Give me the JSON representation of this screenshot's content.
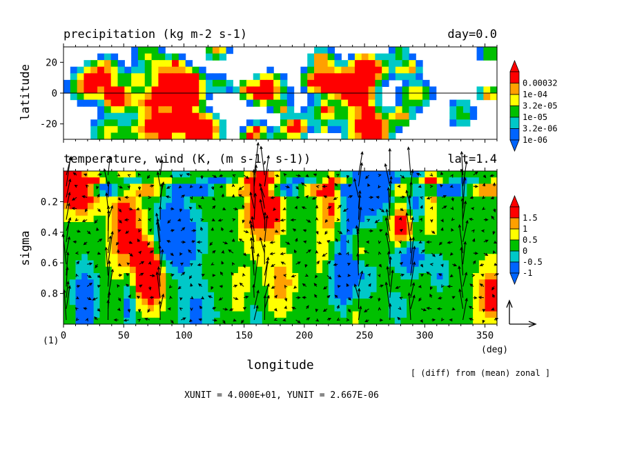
{
  "panels": {
    "top": {
      "title": "precipitation (kg m-2 s-1)",
      "tag": "day=0.0",
      "ylabel": "latitude"
    },
    "bottom": {
      "title": "temperature, wind (K, (m s-1, s-1))",
      "tag": "lat=1.4",
      "ylabel": "sigma",
      "xlabel": "longitude",
      "xunit_label": "(deg)",
      "frame_label": "(1)",
      "note": "[ (diff) from (mean) zonal ]",
      "unit_line": "XUNIT = 4.000E+01, YUNIT = 2.667E-06"
    }
  },
  "chart_data": [
    {
      "type": "heatmap",
      "title": "precipitation (kg m-2 s-1)",
      "xlabel": "",
      "ylabel": "latitude",
      "x_ticks": [
        "0",
        "50",
        "100",
        "150",
        "200",
        "250",
        "300",
        "350"
      ],
      "y_ticks": [
        "20",
        "0",
        "-20"
      ],
      "xlim": [
        0,
        360
      ],
      "ylim": [
        -30,
        30
      ],
      "legend": {
        "position": "right",
        "labels": [
          "0.00032",
          "1e-04",
          "3.2e-05",
          "1e-05",
          "3.2e-06",
          "1e-06"
        ],
        "colors": [
          "#ff0000",
          "#ffa000",
          "#ffff00",
          "#00c000",
          "#00c8c8",
          "#0064ff"
        ]
      },
      "reference_line_y": 0
    },
    {
      "type": "heatmap",
      "title": "temperature, wind (K, (m s-1, s-1))",
      "xlabel": "longitude",
      "ylabel": "sigma",
      "x_ticks": [
        "0",
        "50",
        "100",
        "150",
        "200",
        "250",
        "300",
        "350"
      ],
      "y_ticks": [
        "0.2",
        "0.4",
        "0.6",
        "0.8"
      ],
      "xlim": [
        0,
        360
      ],
      "ylim": [
        1.0,
        0.0
      ],
      "vector_overlay": true,
      "legend": {
        "position": "right",
        "labels": [
          "1.5",
          "1",
          "0.5",
          "0",
          "-0.5",
          "-1"
        ],
        "colors": [
          "#ff0000",
          "#ffa000",
          "#ffff00",
          "#00c000",
          "#00c8c8",
          "#0064ff"
        ]
      }
    }
  ]
}
